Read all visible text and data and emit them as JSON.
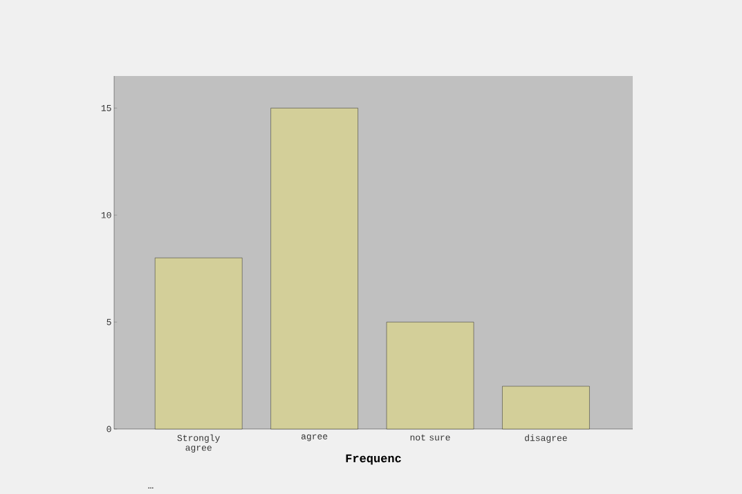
{
  "chart_data": {
    "type": "bar",
    "xlabel": "Frequenc",
    "categories": [
      "Strongly agree",
      "agree",
      "not sure",
      "disagree"
    ],
    "values": [
      8,
      15,
      5,
      2
    ],
    "color": "#d3cf99",
    "ylim": [
      0,
      16.5
    ],
    "yticks": [
      0,
      5,
      10,
      15
    ],
    "grid": false,
    "annotations": [
      "…"
    ]
  }
}
